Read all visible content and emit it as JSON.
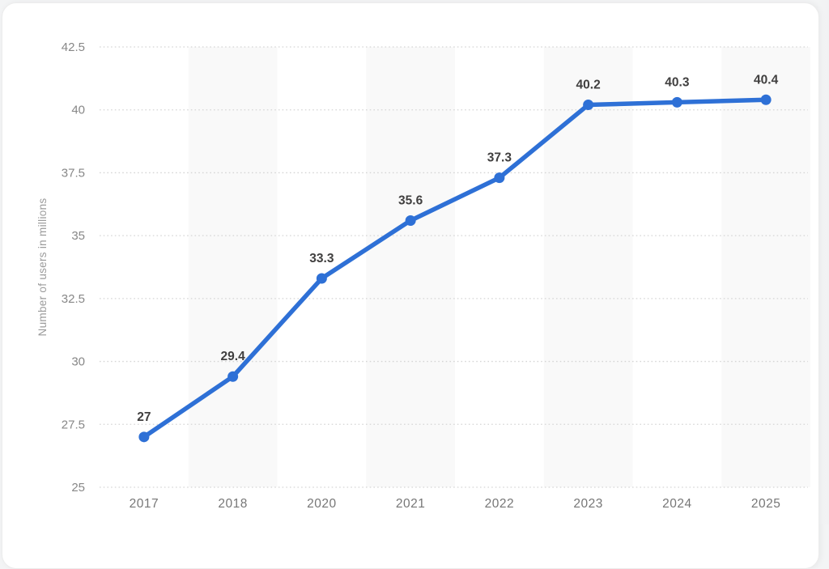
{
  "chart_data": {
    "type": "line",
    "title": "",
    "xlabel": "",
    "ylabel": "Number of users in millions",
    "categories": [
      "2017",
      "2018",
      "2020",
      "2021",
      "2022",
      "2023",
      "2024",
      "2025"
    ],
    "values": [
      27,
      29.4,
      33.3,
      35.6,
      37.3,
      40.2,
      40.3,
      40.4
    ],
    "point_labels": [
      "27",
      "29.4",
      "33.3",
      "35.6",
      "37.3",
      "40.2",
      "40.3",
      "40.4"
    ],
    "series_name": "Number of users",
    "ylim": [
      25,
      42.5
    ],
    "y_ticks": [
      25,
      27.5,
      30,
      32.5,
      35,
      37.5,
      40,
      42.5
    ],
    "y_tick_labels": [
      "25",
      "27.5",
      "30",
      "32.5",
      "35",
      "37.5",
      "40",
      "42.5"
    ],
    "grid": "horizontal dotted",
    "legend": "none",
    "stripe_indices": [
      1,
      3,
      5,
      7
    ],
    "colors": {
      "line": "#2e70d6",
      "point": "#2e70d6",
      "stripe": "#f9f9f9",
      "grid": "#d5d5d5",
      "value_label": "#403f3f",
      "tick_label": "#878787",
      "x_tick_label": "#767676",
      "axis_title": "#9b9b9b",
      "card_background": "#ffffff",
      "card_border": "#ececec"
    }
  }
}
